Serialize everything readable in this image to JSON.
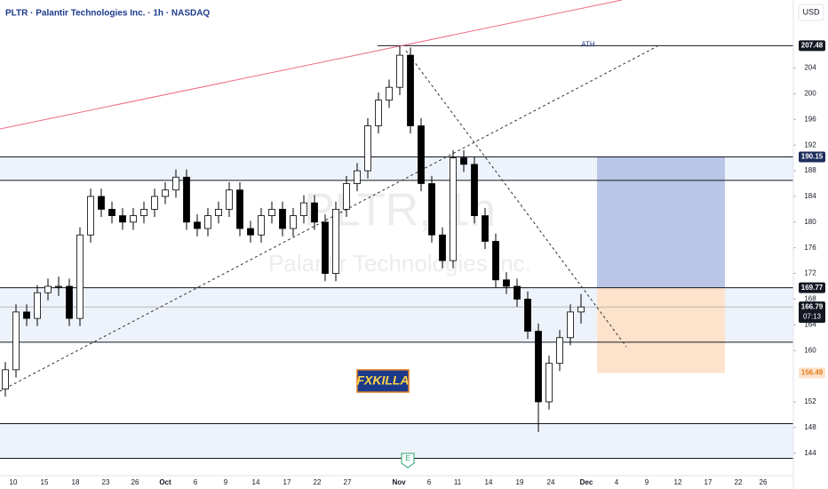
{
  "chart_data": {
    "type": "candlestick",
    "title": "PLTR · Palantir Technologies Inc. · 1h · NASDAQ",
    "currency": "USD",
    "watermark": "PLTR, 1h",
    "watermark_subtitle": "Palantir Technologies Inc.",
    "badge": "FXKILLA",
    "event_marker": "E",
    "ath_label": "ATH",
    "ath": 207.48,
    "last_price": 166.79,
    "countdown": "07:13",
    "position": {
      "target": 190.15,
      "entry": 169.77,
      "stop": 156.49
    },
    "levels": [
      186.5,
      161.3,
      148.6,
      143.2
    ],
    "up_color": "#ffffff",
    "down_color": "#000000",
    "ylim": [
      140.5,
      214.6
    ],
    "yticks": [
      144,
      148,
      152,
      160,
      164,
      168,
      172,
      176,
      180,
      184,
      188,
      192,
      196,
      200,
      204
    ],
    "categories": [
      "10",
      "15",
      "18",
      "23",
      "26",
      "Oct",
      "6",
      "9",
      "14",
      "17",
      "22",
      "27",
      "Nov",
      "6",
      "11",
      "14",
      "19",
      "24",
      "Dec",
      "4",
      "9",
      "12",
      "17",
      "22",
      "26"
    ],
    "ohlc": [
      [
        154,
        158.2,
        152.8,
        157
      ],
      [
        157,
        167.2,
        155.8,
        166
      ],
      [
        166,
        167.2,
        163.8,
        165
      ],
      [
        165,
        170.2,
        163.8,
        169
      ],
      [
        169,
        171.2,
        167.8,
        170
      ],
      [
        170,
        171.5,
        168.5,
        170
      ],
      [
        170,
        171.2,
        163.8,
        165
      ],
      [
        165,
        179.2,
        163.8,
        178
      ],
      [
        178,
        185.2,
        176.8,
        184
      ],
      [
        184,
        185.2,
        180.8,
        182
      ],
      [
        182,
        183.2,
        179.8,
        181
      ],
      [
        181,
        182.2,
        178.8,
        180
      ],
      [
        180,
        182.2,
        178.8,
        181
      ],
      [
        181,
        183.2,
        179.8,
        182
      ],
      [
        182,
        185.2,
        180.8,
        184
      ],
      [
        184,
        186.2,
        182.8,
        185
      ],
      [
        185,
        188.2,
        183.8,
        187
      ],
      [
        187,
        188.2,
        178.8,
        180
      ],
      [
        180,
        181.2,
        177.8,
        179
      ],
      [
        179,
        182.2,
        177.8,
        181
      ],
      [
        181,
        183.2,
        179.8,
        182
      ],
      [
        182,
        186.2,
        180.8,
        185
      ],
      [
        185,
        186.2,
        177.8,
        179
      ],
      [
        179,
        180.2,
        176.8,
        178
      ],
      [
        178,
        182.2,
        176.8,
        181
      ],
      [
        181,
        183.2,
        179.8,
        182
      ],
      [
        182,
        183.2,
        177.8,
        179
      ],
      [
        179,
        182.2,
        177.8,
        181
      ],
      [
        181,
        184.2,
        179.8,
        183
      ],
      [
        183,
        184.2,
        178.8,
        180
      ],
      [
        180,
        181.2,
        170.8,
        172
      ],
      [
        172,
        183.2,
        170.8,
        182
      ],
      [
        182,
        187.2,
        180.8,
        186
      ],
      [
        186,
        189.2,
        184.8,
        188
      ],
      [
        188,
        196.2,
        186.8,
        195
      ],
      [
        195,
        200.2,
        193.8,
        199
      ],
      [
        199,
        202.2,
        197.8,
        201
      ],
      [
        201,
        207.5,
        199.8,
        206
      ],
      [
        206,
        207.2,
        193.8,
        195
      ],
      [
        195,
        196.2,
        184.8,
        186
      ],
      [
        186,
        187.2,
        176.8,
        178
      ],
      [
        178,
        179.2,
        172.8,
        174
      ],
      [
        174,
        191.2,
        172.8,
        190
      ],
      [
        190,
        191.2,
        187.8,
        189
      ],
      [
        189,
        190.2,
        179.8,
        181
      ],
      [
        181,
        182.2,
        175.8,
        177
      ],
      [
        177,
        178.2,
        169.8,
        171
      ],
      [
        171,
        172.2,
        168.8,
        170
      ],
      [
        170,
        171.2,
        166.8,
        168
      ],
      [
        168,
        169.2,
        161.8,
        163
      ],
      [
        163,
        164.2,
        147.3,
        152
      ],
      [
        152,
        159.2,
        150.8,
        158
      ],
      [
        158,
        163.2,
        156.8,
        162
      ],
      [
        162,
        167.2,
        160.8,
        166
      ],
      [
        166,
        168.8,
        164.2,
        166.79
      ]
    ]
  }
}
